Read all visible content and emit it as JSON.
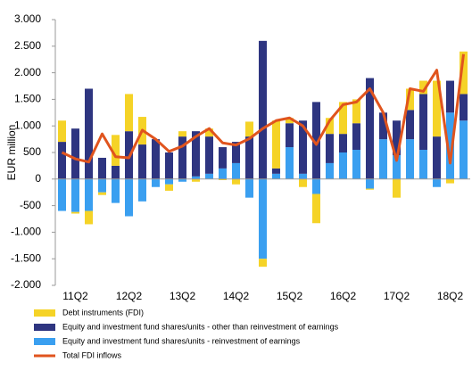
{
  "chart_data": {
    "type": "bar",
    "y_label": "EUR million",
    "categories": [
      null,
      "11Q2",
      null,
      null,
      null,
      "12Q2",
      null,
      null,
      null,
      "13Q2",
      null,
      null,
      null,
      "14Q2",
      null,
      null,
      null,
      "15Q2",
      null,
      null,
      null,
      "16Q2",
      null,
      null,
      null,
      "17Q2",
      null,
      null,
      null,
      "18Q2",
      null
    ],
    "series": [
      {
        "name": "Equity and investment fund shares/units - reinvestment of earnings",
        "color": "#3a9ff0",
        "values": [
          -600,
          -620,
          -600,
          -250,
          -450,
          -700,
          -420,
          -150,
          -100,
          -50,
          50,
          100,
          200,
          300,
          -350,
          -1500,
          100,
          600,
          100,
          -280,
          300,
          500,
          550,
          -180,
          750,
          450,
          750,
          550,
          -150,
          1250,
          1100
        ]
      },
      {
        "name": "Equity and investment fund shares/units - other than reinvestment of earnings",
        "color": "#2e3580",
        "values": [
          700,
          950,
          1700,
          400,
          250,
          900,
          650,
          750,
          500,
          800,
          850,
          700,
          400,
          400,
          800,
          2600,
          100,
          450,
          1000,
          1450,
          550,
          350,
          500,
          1900,
          500,
          650,
          550,
          1050,
          800,
          600,
          500
        ]
      },
      {
        "name": "Debt instruments (FDI)",
        "color": "#f5d327",
        "values": [
          400,
          -30,
          -250,
          -50,
          580,
          700,
          520,
          0,
          -120,
          100,
          -50,
          150,
          -20,
          -100,
          280,
          -150,
          900,
          100,
          -150,
          -550,
          300,
          600,
          450,
          -20,
          0,
          -350,
          400,
          250,
          1050,
          -80,
          800
        ]
      }
    ],
    "line": {
      "name": "Total FDI inflows",
      "color": "#e0541e",
      "values": [
        500,
        380,
        320,
        850,
        420,
        400,
        920,
        750,
        520,
        620,
        800,
        950,
        680,
        640,
        760,
        950,
        1100,
        1150,
        1000,
        650,
        1100,
        1400,
        1450,
        1700,
        1250,
        350,
        1700,
        1650,
        2050,
        300,
        2350
      ]
    },
    "ylim": [
      -2000,
      3000
    ],
    "yticks": [
      {
        "value": -2000,
        "label": "-2.000"
      },
      {
        "value": -1500,
        "label": "-1.500"
      },
      {
        "value": -1000,
        "label": "-1.000"
      },
      -500,
      0,
      500,
      {
        "value": 1000,
        "label": "1.000"
      },
      {
        "value": 1500,
        "label": "1.500"
      },
      {
        "value": 2000,
        "label": "2.000"
      },
      {
        "value": 2500,
        "label": "2.500"
      },
      {
        "value": 3000,
        "label": "3.000"
      }
    ],
    "legend_order": [
      2,
      1,
      0
    ]
  }
}
